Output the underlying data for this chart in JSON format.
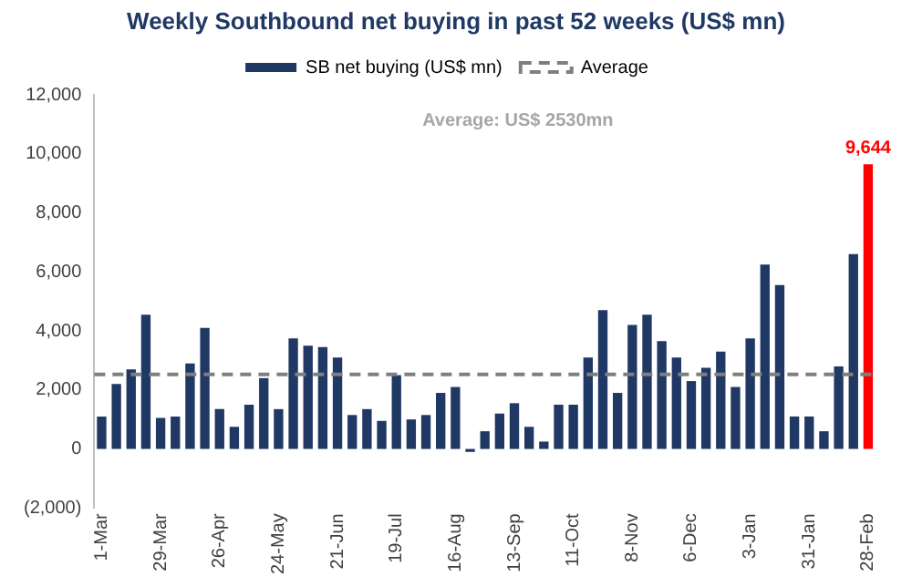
{
  "chart_data": {
    "type": "bar",
    "title": "Weekly Southbound net buying in past 52 weeks (US$ mn)",
    "categories": [
      "1-Mar",
      null,
      null,
      null,
      "29-Mar",
      null,
      null,
      null,
      "26-Apr",
      null,
      null,
      null,
      "24-May",
      null,
      null,
      null,
      "21-Jun",
      null,
      null,
      null,
      "19-Jul",
      null,
      null,
      null,
      "16-Aug",
      null,
      null,
      null,
      "13-Sep",
      null,
      null,
      null,
      "11-Oct",
      null,
      null,
      null,
      "8-Nov",
      null,
      null,
      null,
      "6-Dec",
      null,
      null,
      null,
      "3-Jan",
      null,
      null,
      null,
      "31-Jan",
      null,
      null,
      null,
      "28-Feb"
    ],
    "series": [
      {
        "name": "SB net buying (US$ mn)",
        "color": "#1f3864",
        "colors": [
          "#1f3864",
          "#1f3864",
          "#1f3864",
          "#1f3864",
          "#1f3864",
          "#1f3864",
          "#1f3864",
          "#1f3864",
          "#1f3864",
          "#1f3864",
          "#1f3864",
          "#1f3864",
          "#1f3864",
          "#1f3864",
          "#1f3864",
          "#1f3864",
          "#1f3864",
          "#1f3864",
          "#1f3864",
          "#1f3864",
          "#1f3864",
          "#1f3864",
          "#1f3864",
          "#1f3864",
          "#1f3864",
          "#1f3864",
          "#1f3864",
          "#1f3864",
          "#1f3864",
          "#1f3864",
          "#1f3864",
          "#1f3864",
          "#1f3864",
          "#1f3864",
          "#1f3864",
          "#1f3864",
          "#1f3864",
          "#1f3864",
          "#1f3864",
          "#1f3864",
          "#1f3864",
          "#1f3864",
          "#1f3864",
          "#1f3864",
          "#1f3864",
          "#1f3864",
          "#1f3864",
          "#1f3864",
          "#1f3864",
          "#1f3864",
          "#1f3864",
          "#1f3864",
          "#ff0000"
        ],
        "values": [
          1100,
          2200,
          2700,
          4550,
          1050,
          1100,
          2900,
          4100,
          1350,
          750,
          1500,
          2400,
          1350,
          3750,
          3500,
          3450,
          3100,
          1150,
          1350,
          950,
          2500,
          1000,
          1150,
          1900,
          2100,
          -100,
          600,
          1200,
          1550,
          750,
          250,
          1500,
          1500,
          3100,
          4700,
          1900,
          4200,
          4550,
          3650,
          3100,
          2300,
          2750,
          3300,
          2100,
          3750,
          6250,
          5550,
          1100,
          1100,
          600,
          2800,
          6600,
          9644
        ],
        "value_labels": [
          null,
          null,
          null,
          null,
          null,
          null,
          null,
          null,
          null,
          null,
          null,
          null,
          null,
          null,
          null,
          null,
          null,
          null,
          null,
          null,
          null,
          null,
          null,
          null,
          null,
          null,
          null,
          null,
          null,
          null,
          null,
          null,
          null,
          null,
          null,
          null,
          null,
          null,
          null,
          null,
          null,
          null,
          null,
          null,
          null,
          null,
          null,
          null,
          null,
          null,
          null,
          null,
          "9,644"
        ]
      }
    ],
    "ref_lines": [
      {
        "axis": "y",
        "value": 2530,
        "label": "Average",
        "color": "#7f7f7f",
        "line_style": "dashed"
      }
    ],
    "annotations": [
      "Average: US$ 2530mn"
    ],
    "ylim": [
      -2000,
      12000
    ],
    "yticks": [
      {
        "value": -2000,
        "label": "(2,000)"
      },
      {
        "value": 0,
        "label": "0"
      },
      {
        "value": 2000,
        "label": "2,000"
      },
      {
        "value": 4000,
        "label": "4,000"
      },
      {
        "value": 6000,
        "label": "6,000"
      },
      {
        "value": 8000,
        "label": "8,000"
      },
      {
        "value": 10000,
        "label": "10,000"
      },
      {
        "value": 12000,
        "label": "12,000"
      }
    ],
    "grid": false,
    "legend": "top"
  }
}
